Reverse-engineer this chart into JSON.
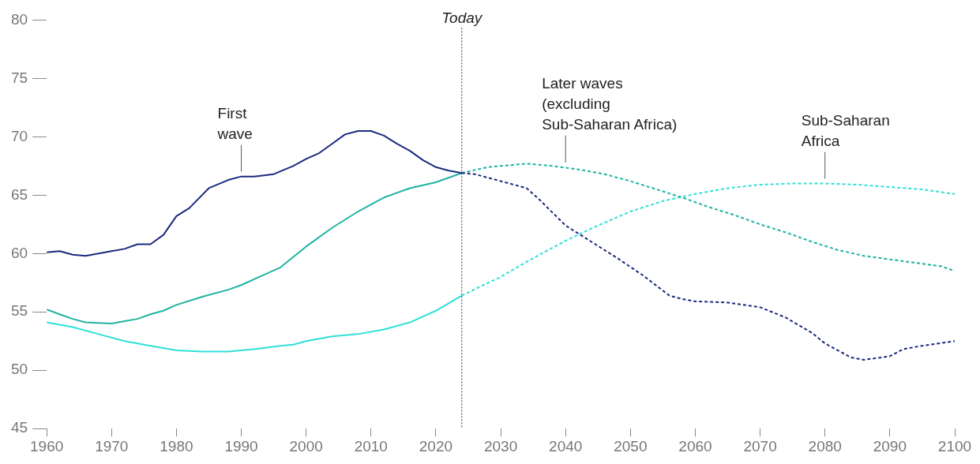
{
  "chart_data": {
    "type": "line",
    "xlim": [
      1960,
      2100
    ],
    "xticks": [
      1960,
      1970,
      1980,
      1990,
      2000,
      2010,
      2020,
      2030,
      2040,
      2050,
      2060,
      2070,
      2080,
      2090,
      2100
    ],
    "ylim": [
      45,
      80
    ],
    "yticks": [
      45,
      50,
      55,
      60,
      65,
      70,
      75,
      80
    ],
    "grid": false,
    "legend": false,
    "marker": "none",
    "series": [
      {
        "color": "#1b2a7e",
        "line_style": "solid",
        "x": [
          1960,
          1962,
          1964,
          1966,
          1970,
          1972,
          1974,
          1976,
          1978,
          1980,
          1982,
          1985,
          1988,
          1990,
          1992,
          1995,
          1998,
          2000,
          2002,
          2004,
          2006,
          2008,
          2010,
          2012,
          2014,
          2016,
          2018,
          2020,
          2022,
          2024
        ],
        "values": [
          60.1,
          60.2,
          59.9,
          59.8,
          60.2,
          60.4,
          60.8,
          60.8,
          61.6,
          63.2,
          63.9,
          65.6,
          66.3,
          66.6,
          66.6,
          66.8,
          67.5,
          68.1,
          68.6,
          69.4,
          70.2,
          70.5,
          70.5,
          70.1,
          69.4,
          68.8,
          68.0,
          67.4,
          67.1,
          66.9
        ]
      },
      {
        "color": "#1b2a7e",
        "line_style": "dashed",
        "x": [
          2024,
          2026,
          2030,
          2034,
          2036,
          2040,
          2044,
          2048,
          2052,
          2056,
          2058,
          2060,
          2065,
          2070,
          2074,
          2078,
          2080,
          2084,
          2086,
          2090,
          2092,
          2095,
          2100
        ],
        "values": [
          66.9,
          66.8,
          66.2,
          65.6,
          64.6,
          62.4,
          61.0,
          59.6,
          58.1,
          56.4,
          56.1,
          55.9,
          55.8,
          55.4,
          54.5,
          53.2,
          52.3,
          51.1,
          50.9,
          51.2,
          51.8,
          52.1,
          52.5
        ]
      },
      {
        "color": "#1fb3a1",
        "line_style": "solid",
        "x": [
          1960,
          1962,
          1964,
          1966,
          1970,
          1972,
          1974,
          1976,
          1978,
          1980,
          1984,
          1988,
          1990,
          1994,
          1996,
          2000,
          2004,
          2008,
          2012,
          2016,
          2020,
          2024
        ],
        "values": [
          55.2,
          54.8,
          54.4,
          54.1,
          54.0,
          54.2,
          54.4,
          54.8,
          55.1,
          55.6,
          56.3,
          56.9,
          57.3,
          58.3,
          58.8,
          60.6,
          62.2,
          63.6,
          64.8,
          65.6,
          66.1,
          66.9
        ]
      },
      {
        "color": "#1fb3a1",
        "line_style": "dashed",
        "x": [
          2024,
          2028,
          2030,
          2034,
          2038,
          2042,
          2046,
          2050,
          2054,
          2058,
          2062,
          2066,
          2070,
          2074,
          2078,
          2082,
          2086,
          2090,
          2094,
          2098,
          2100
        ],
        "values": [
          66.9,
          67.4,
          67.5,
          67.7,
          67.5,
          67.2,
          66.8,
          66.2,
          65.5,
          64.8,
          64.0,
          63.3,
          62.5,
          61.8,
          61.0,
          60.3,
          59.8,
          59.5,
          59.2,
          58.9,
          58.5
        ]
      },
      {
        "color": "#2fe0d6",
        "line_style": "solid",
        "x": [
          1960,
          1964,
          1968,
          1972,
          1976,
          1980,
          1984,
          1988,
          1992,
          1996,
          1998,
          2000,
          2004,
          2008,
          2012,
          2016,
          2020,
          2024
        ],
        "values": [
          54.1,
          53.7,
          53.1,
          52.5,
          52.1,
          51.7,
          51.6,
          51.6,
          51.8,
          52.1,
          52.2,
          52.5,
          52.9,
          53.1,
          53.5,
          54.1,
          55.1,
          56.4
        ]
      },
      {
        "color": "#2fe0d6",
        "line_style": "dashed",
        "x": [
          2024,
          2030,
          2035,
          2040,
          2045,
          2050,
          2055,
          2060,
          2065,
          2070,
          2075,
          2080,
          2085,
          2090,
          2095,
          2100
        ],
        "values": [
          56.4,
          58.0,
          59.6,
          61.1,
          62.4,
          63.6,
          64.5,
          65.1,
          65.6,
          65.9,
          66.0,
          66.0,
          65.9,
          65.7,
          65.5,
          65.1
        ]
      }
    ],
    "ref_lines": [
      {
        "axis": "x",
        "value": 2024,
        "label": "Today",
        "color": "#333333",
        "line_style": "dotted"
      }
    ],
    "annotations": [
      {
        "text": "First\nwave",
        "x": 1990,
        "y": 66.6
      },
      {
        "text": "Later waves\n(excluding\nSub-Saharan Africa)",
        "x": 2040,
        "y": 67.4
      },
      {
        "text": "Sub-Saharan\nAfrica",
        "x": 2080,
        "y": 66.0
      }
    ]
  }
}
